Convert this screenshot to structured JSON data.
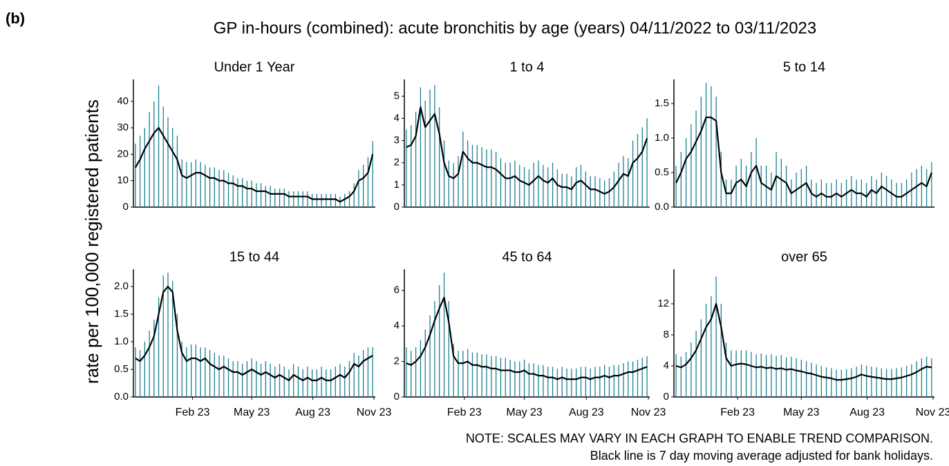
{
  "panel_label": "(b)",
  "title": "GP in-hours (combined): acute bronchitis by age (years) 04/11/2022 to 03/11/2023",
  "y_label": "rate per 100,000 registered patients",
  "notes": [
    "NOTE: SCALES MAY VARY IN EACH GRAPH TO ENABLE TREND COMPARISON.",
    "Black line is 7 day moving average adjusted for bank holidays."
  ],
  "chart_data": [
    {
      "type": "line",
      "title": "Under 1 Year",
      "xlim": [
        0,
        364
      ],
      "ylim": [
        0,
        47
      ],
      "yticks": [
        0,
        10,
        20,
        30,
        40
      ],
      "x": [
        3,
        10,
        17,
        24,
        31,
        38,
        45,
        52,
        59,
        66,
        73,
        80,
        87,
        94,
        101,
        108,
        115,
        122,
        129,
        136,
        143,
        150,
        157,
        164,
        171,
        178,
        185,
        192,
        199,
        206,
        213,
        220,
        227,
        234,
        241,
        248,
        255,
        262,
        269,
        276,
        283,
        290,
        297,
        304,
        311,
        318,
        325,
        332,
        339,
        346,
        353,
        360
      ],
      "series": [
        {
          "color": "#1b7f93",
          "style": "spike",
          "values": [
            24,
            27,
            30,
            36,
            40,
            46,
            38,
            34,
            30,
            27,
            18,
            17,
            17,
            18,
            17,
            16,
            15,
            15,
            14,
            14,
            13,
            12,
            11,
            11,
            10,
            10,
            9,
            9,
            8,
            8,
            7,
            7,
            7,
            6,
            6,
            6,
            6,
            6,
            5,
            5,
            5,
            5,
            5,
            5,
            4,
            5,
            6,
            9,
            14,
            16,
            19,
            25
          ]
        },
        {
          "color": "#000000",
          "style": "line",
          "values": [
            15,
            18,
            22,
            25,
            28,
            30,
            27,
            24,
            21,
            18,
            12,
            11,
            12,
            13,
            13,
            12,
            11,
            11,
            10,
            10,
            9,
            9,
            8,
            8,
            7,
            7,
            6,
            6,
            6,
            5,
            5,
            5,
            5,
            4,
            4,
            4,
            4,
            4,
            3,
            3,
            3,
            3,
            3,
            3,
            2,
            3,
            4,
            6,
            10,
            11,
            13,
            20
          ]
        }
      ]
    },
    {
      "type": "line",
      "title": "1 to 4",
      "xlim": [
        0,
        364
      ],
      "ylim": [
        0,
        5.6
      ],
      "yticks": [
        0,
        1,
        2,
        3,
        4,
        5
      ],
      "x": [
        3,
        10,
        17,
        24,
        31,
        38,
        45,
        52,
        59,
        66,
        73,
        80,
        87,
        94,
        101,
        108,
        115,
        122,
        129,
        136,
        143,
        150,
        157,
        164,
        171,
        178,
        185,
        192,
        199,
        206,
        213,
        220,
        227,
        234,
        241,
        248,
        255,
        262,
        269,
        276,
        283,
        290,
        297,
        304,
        311,
        318,
        325,
        332,
        339,
        346,
        353,
        360
      ],
      "series": [
        {
          "color": "#1b7f93",
          "style": "spike",
          "values": [
            3.5,
            3.7,
            4.3,
            5.4,
            4.8,
            5.3,
            5.5,
            4.5,
            3.0,
            2.1,
            2.0,
            2.3,
            3.4,
            3.0,
            2.8,
            2.8,
            2.7,
            2.6,
            2.6,
            2.5,
            2.2,
            2.0,
            2.0,
            2.1,
            1.9,
            1.8,
            1.7,
            2.0,
            2.1,
            1.9,
            1.8,
            2.0,
            1.7,
            1.5,
            1.5,
            1.4,
            1.8,
            1.9,
            1.6,
            1.4,
            1.4,
            1.3,
            1.2,
            1.3,
            1.6,
            2.0,
            2.3,
            2.2,
            3.0,
            3.3,
            3.6,
            4.0
          ]
        },
        {
          "color": "#000000",
          "style": "line",
          "values": [
            2.7,
            2.8,
            3.2,
            4.5,
            3.6,
            3.9,
            4.2,
            3.3,
            2.0,
            1.4,
            1.3,
            1.5,
            2.5,
            2.2,
            2.0,
            2.0,
            1.9,
            1.8,
            1.8,
            1.7,
            1.5,
            1.3,
            1.3,
            1.4,
            1.2,
            1.1,
            1.0,
            1.2,
            1.4,
            1.2,
            1.1,
            1.3,
            1.0,
            0.9,
            0.9,
            0.8,
            1.1,
            1.2,
            1.0,
            0.8,
            0.8,
            0.7,
            0.6,
            0.7,
            0.9,
            1.2,
            1.5,
            1.4,
            2.0,
            2.2,
            2.5,
            3.1
          ]
        }
      ]
    },
    {
      "type": "line",
      "title": "5 to 14",
      "xlim": [
        0,
        364
      ],
      "ylim": [
        0,
        1.8
      ],
      "yticks": [
        {
          "value": 0,
          "label": "0.0"
        },
        0.5,
        {
          "value": 1,
          "label": "1.0"
        },
        1.5
      ],
      "x": [
        3,
        10,
        17,
        24,
        31,
        38,
        45,
        52,
        59,
        66,
        73,
        80,
        87,
        94,
        101,
        108,
        115,
        122,
        129,
        136,
        143,
        150,
        157,
        164,
        171,
        178,
        185,
        192,
        199,
        206,
        213,
        220,
        227,
        234,
        241,
        248,
        255,
        262,
        269,
        276,
        283,
        290,
        297,
        304,
        311,
        318,
        325,
        332,
        339,
        346,
        353,
        360
      ],
      "series": [
        {
          "color": "#1b7f93",
          "style": "spike",
          "values": [
            0.6,
            0.8,
            1.0,
            1.2,
            1.4,
            1.6,
            1.8,
            1.75,
            1.6,
            0.8,
            0.4,
            0.4,
            0.6,
            0.7,
            0.6,
            0.8,
            1.0,
            0.6,
            0.6,
            0.5,
            0.8,
            0.7,
            0.6,
            0.4,
            0.5,
            0.55,
            0.6,
            0.4,
            0.35,
            0.4,
            0.35,
            0.35,
            0.4,
            0.35,
            0.4,
            0.45,
            0.4,
            0.4,
            0.35,
            0.45,
            0.4,
            0.5,
            0.45,
            0.4,
            0.35,
            0.35,
            0.4,
            0.5,
            0.55,
            0.6,
            0.55,
            0.65
          ]
        },
        {
          "color": "#000000",
          "style": "line",
          "values": [
            0.35,
            0.5,
            0.7,
            0.8,
            0.95,
            1.1,
            1.3,
            1.3,
            1.25,
            0.5,
            0.2,
            0.2,
            0.35,
            0.4,
            0.3,
            0.5,
            0.6,
            0.35,
            0.3,
            0.25,
            0.45,
            0.4,
            0.35,
            0.2,
            0.25,
            0.3,
            0.35,
            0.2,
            0.15,
            0.2,
            0.15,
            0.15,
            0.2,
            0.15,
            0.2,
            0.25,
            0.2,
            0.2,
            0.15,
            0.25,
            0.2,
            0.3,
            0.25,
            0.2,
            0.15,
            0.15,
            0.2,
            0.25,
            0.3,
            0.35,
            0.3,
            0.5
          ]
        }
      ]
    },
    {
      "type": "line",
      "title": "15 to 44",
      "xlim": [
        0,
        364
      ],
      "ylim": [
        0,
        2.25
      ],
      "yticks": [
        {
          "value": 0,
          "label": "0.0"
        },
        0.5,
        {
          "value": 1,
          "label": "1.0"
        },
        1.5,
        {
          "value": 2,
          "label": "2.0"
        }
      ],
      "xticks": [
        {
          "value": 89,
          "label": "Feb 23"
        },
        {
          "value": 178,
          "label": "May 23"
        },
        {
          "value": 270,
          "label": "Aug 23"
        },
        {
          "value": 362,
          "label": "Nov 23"
        }
      ],
      "x": [
        3,
        10,
        17,
        24,
        31,
        38,
        45,
        52,
        59,
        66,
        73,
        80,
        87,
        94,
        101,
        108,
        115,
        122,
        129,
        136,
        143,
        150,
        157,
        164,
        171,
        178,
        185,
        192,
        199,
        206,
        213,
        220,
        227,
        234,
        241,
        248,
        255,
        262,
        269,
        276,
        283,
        290,
        297,
        304,
        311,
        318,
        325,
        332,
        339,
        346,
        353,
        360
      ],
      "series": [
        {
          "color": "#1b7f93",
          "style": "spike",
          "values": [
            0.9,
            0.85,
            1.0,
            1.2,
            1.4,
            1.8,
            2.2,
            2.25,
            2.1,
            1.5,
            1.0,
            0.9,
            0.95,
            0.95,
            0.9,
            0.9,
            0.85,
            0.8,
            0.75,
            0.75,
            0.7,
            0.65,
            0.65,
            0.6,
            0.65,
            0.7,
            0.65,
            0.6,
            0.65,
            0.6,
            0.55,
            0.6,
            0.55,
            0.5,
            0.6,
            0.55,
            0.5,
            0.55,
            0.5,
            0.5,
            0.55,
            0.5,
            0.5,
            0.55,
            0.6,
            0.55,
            0.65,
            0.8,
            0.75,
            0.85,
            0.9,
            0.9
          ]
        },
        {
          "color": "#000000",
          "style": "line",
          "values": [
            0.7,
            0.65,
            0.75,
            0.9,
            1.1,
            1.5,
            1.9,
            2.0,
            1.9,
            1.2,
            0.8,
            0.65,
            0.7,
            0.7,
            0.65,
            0.7,
            0.6,
            0.55,
            0.5,
            0.55,
            0.5,
            0.45,
            0.45,
            0.4,
            0.45,
            0.5,
            0.45,
            0.4,
            0.45,
            0.4,
            0.35,
            0.4,
            0.35,
            0.3,
            0.4,
            0.35,
            0.3,
            0.35,
            0.3,
            0.3,
            0.35,
            0.3,
            0.3,
            0.35,
            0.4,
            0.35,
            0.45,
            0.6,
            0.55,
            0.65,
            0.7,
            0.75
          ]
        }
      ]
    },
    {
      "type": "line",
      "title": "45 to 64",
      "xlim": [
        0,
        364
      ],
      "ylim": [
        0,
        7
      ],
      "yticks": [
        0,
        2,
        4,
        6
      ],
      "xticks": [
        {
          "value": 89,
          "label": "Feb 23"
        },
        {
          "value": 178,
          "label": "May 23"
        },
        {
          "value": 270,
          "label": "Aug 23"
        },
        {
          "value": 362,
          "label": "Nov 23"
        }
      ],
      "x": [
        3,
        10,
        17,
        24,
        31,
        38,
        45,
        52,
        59,
        66,
        73,
        80,
        87,
        94,
        101,
        108,
        115,
        122,
        129,
        136,
        143,
        150,
        157,
        164,
        171,
        178,
        185,
        192,
        199,
        206,
        213,
        220,
        227,
        234,
        241,
        248,
        255,
        262,
        269,
        276,
        283,
        290,
        297,
        304,
        311,
        318,
        325,
        332,
        339,
        346,
        353,
        360
      ],
      "series": [
        {
          "color": "#1b7f93",
          "style": "spike",
          "values": [
            2.8,
            2.6,
            2.8,
            3.2,
            3.8,
            4.6,
            5.4,
            6.3,
            7.0,
            5.4,
            3.0,
            2.6,
            2.6,
            2.7,
            2.5,
            2.5,
            2.4,
            2.4,
            2.3,
            2.3,
            2.2,
            2.2,
            2.1,
            2.0,
            2.0,
            2.1,
            1.9,
            1.9,
            1.8,
            1.8,
            1.7,
            1.7,
            1.6,
            1.7,
            1.6,
            1.6,
            1.6,
            1.7,
            1.7,
            1.6,
            1.7,
            1.7,
            1.8,
            1.7,
            1.8,
            1.8,
            1.9,
            2.0,
            2.0,
            2.1,
            2.2,
            2.3
          ]
        },
        {
          "color": "#000000",
          "style": "line",
          "values": [
            1.9,
            1.8,
            2.0,
            2.3,
            2.8,
            3.5,
            4.3,
            5.0,
            5.6,
            4.2,
            2.3,
            1.9,
            1.9,
            2.0,
            1.8,
            1.8,
            1.7,
            1.7,
            1.6,
            1.6,
            1.5,
            1.5,
            1.5,
            1.4,
            1.4,
            1.5,
            1.3,
            1.3,
            1.2,
            1.2,
            1.1,
            1.1,
            1.0,
            1.1,
            1.0,
            1.0,
            1.0,
            1.1,
            1.1,
            1.0,
            1.1,
            1.1,
            1.2,
            1.1,
            1.2,
            1.2,
            1.3,
            1.4,
            1.4,
            1.5,
            1.6,
            1.7
          ]
        }
      ]
    },
    {
      "type": "line",
      "title": "over 65",
      "xlim": [
        0,
        364
      ],
      "ylim": [
        0,
        16
      ],
      "yticks": [
        0,
        4,
        8,
        12
      ],
      "xticks": [
        {
          "value": 89,
          "label": "Feb 23"
        },
        {
          "value": 178,
          "label": "May 23"
        },
        {
          "value": 270,
          "label": "Aug 23"
        },
        {
          "value": 362,
          "label": "Nov 23"
        }
      ],
      "x": [
        3,
        10,
        17,
        24,
        31,
        38,
        45,
        52,
        59,
        66,
        73,
        80,
        87,
        94,
        101,
        108,
        115,
        122,
        129,
        136,
        143,
        150,
        157,
        164,
        171,
        178,
        185,
        192,
        199,
        206,
        213,
        220,
        227,
        234,
        241,
        248,
        255,
        262,
        269,
        276,
        283,
        290,
        297,
        304,
        311,
        318,
        325,
        332,
        339,
        346,
        353,
        360
      ],
      "series": [
        {
          "color": "#1b7f93",
          "style": "spike",
          "values": [
            5.5,
            5.2,
            5.8,
            7,
            8.5,
            10,
            12,
            13,
            15.5,
            12,
            7,
            6,
            6,
            6,
            6,
            5.8,
            5.5,
            5.6,
            5.4,
            5.5,
            5.3,
            5.4,
            5.1,
            5.2,
            5,
            4.8,
            4.6,
            4.4,
            4.2,
            4,
            3.8,
            3.7,
            3.5,
            3.5,
            3.6,
            3.7,
            3.9,
            4.2,
            4,
            3.9,
            3.8,
            3.7,
            3.6,
            3.6,
            3.7,
            3.8,
            4,
            4.2,
            4.6,
            5,
            5.2,
            5
          ]
        },
        {
          "color": "#000000",
          "style": "line",
          "values": [
            4,
            3.8,
            4.2,
            5,
            6,
            7.5,
            9,
            10,
            12,
            9,
            5,
            4,
            4.2,
            4.3,
            4.2,
            4,
            3.8,
            3.9,
            3.7,
            3.8,
            3.6,
            3.7,
            3.5,
            3.6,
            3.4,
            3.3,
            3.1,
            3.0,
            2.8,
            2.6,
            2.5,
            2.4,
            2.2,
            2.2,
            2.3,
            2.4,
            2.6,
            2.9,
            2.7,
            2.6,
            2.5,
            2.4,
            2.3,
            2.3,
            2.4,
            2.5,
            2.7,
            2.9,
            3.2,
            3.6,
            3.9,
            3.8
          ]
        }
      ]
    }
  ]
}
